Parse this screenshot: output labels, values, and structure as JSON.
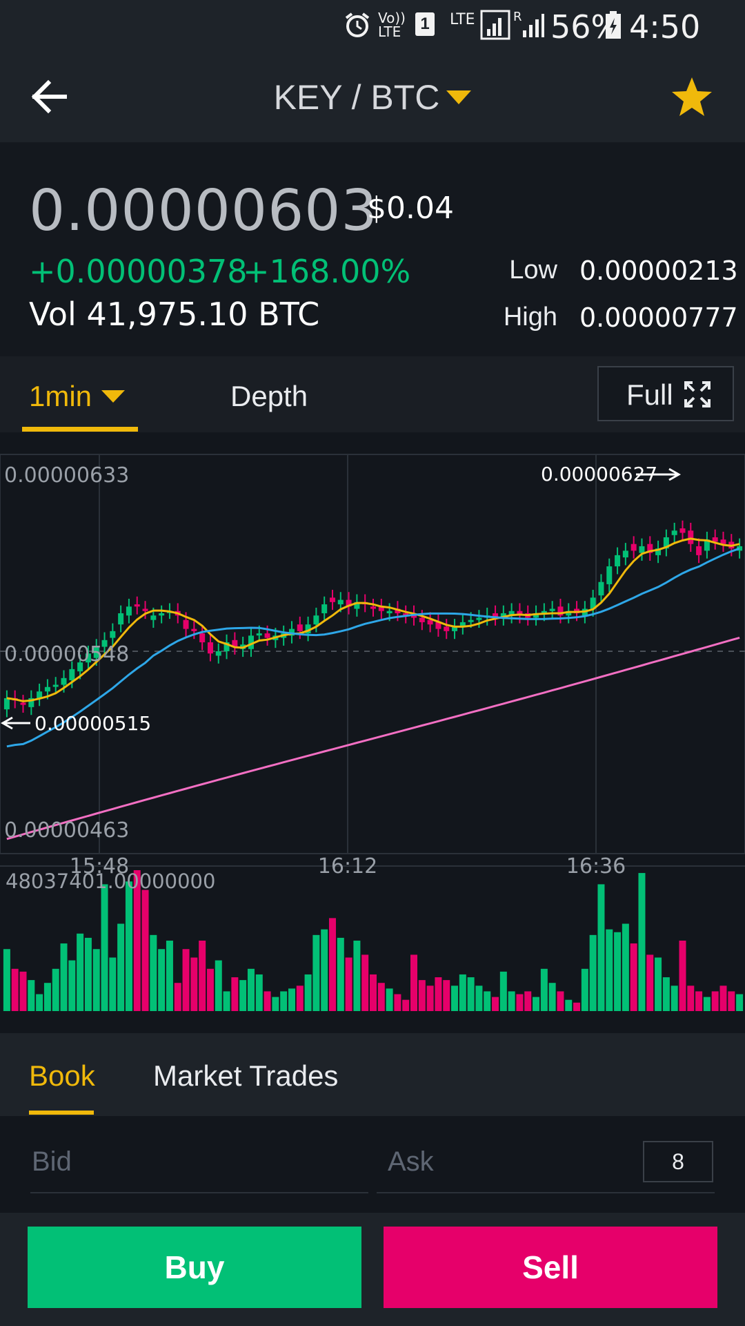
{
  "status_bar": {
    "network_labels": [
      "Vo)) LTE",
      "1",
      "LTE",
      "R"
    ],
    "battery": "56%",
    "time": "4:50 pm"
  },
  "header": {
    "pair": "KEY / BTC",
    "back_icon": "arrow-left-icon",
    "favorite_icon": "star-icon",
    "favorite_color": "#f0b90b"
  },
  "ticker": {
    "price": "0.00000603",
    "price_usd": "$0.04",
    "change": "+0.00000378",
    "change_pct": "+168.00%",
    "volume": "Vol 41,975.10 BTC",
    "low_label": "Low",
    "low_value": "0.00000213",
    "high_label": "High",
    "high_value": "0.00000777",
    "up_color": "#02c076"
  },
  "chart_toolbar": {
    "interval": "1min",
    "depth_label": "Depth",
    "full_label": "Full",
    "accent": "#f0b90b"
  },
  "chart_data": {
    "type": "candlestick",
    "y_axis_labels": [
      "0.00000633",
      "0.00000548",
      "0.00000463"
    ],
    "ylim": [
      4.63e-06,
      6.33e-06
    ],
    "current_price_line": 5.48e-06,
    "x_axis_labels": [
      "15:48",
      "16:12",
      "16:36"
    ],
    "annotations": {
      "max_label": "0.00000627",
      "min_label": "0.00000515"
    },
    "up_color": "#02c076",
    "down_color": "#e6006a",
    "ma_colors": [
      "#f0b90b",
      "#2ea7e8",
      "#f36fc3"
    ],
    "close": [
      5.27,
      5.26,
      5.24,
      5.27,
      5.3,
      5.32,
      5.33,
      5.36,
      5.4,
      5.43,
      5.47,
      5.5,
      5.53,
      5.57,
      5.65,
      5.68,
      5.68,
      5.66,
      5.64,
      5.65,
      5.66,
      5.64,
      5.58,
      5.57,
      5.52,
      5.47,
      5.48,
      5.52,
      5.5,
      5.51,
      5.55,
      5.56,
      5.54,
      5.55,
      5.56,
      5.58,
      5.57,
      5.6,
      5.64,
      5.69,
      5.7,
      5.71,
      5.68,
      5.7,
      5.69,
      5.67,
      5.66,
      5.66,
      5.65,
      5.64,
      5.63,
      5.61,
      5.6,
      5.58,
      5.57,
      5.59,
      5.61,
      5.62,
      5.63,
      5.64,
      5.63,
      5.65,
      5.66,
      5.64,
      5.63,
      5.65,
      5.66,
      5.67,
      5.64,
      5.66,
      5.65,
      5.67,
      5.72,
      5.79,
      5.86,
      5.91,
      5.93,
      5.93,
      5.95,
      5.92,
      5.94,
      5.99,
      6.02,
      6.01,
      5.96,
      5.91,
      5.98,
      5.97,
      5.96,
      5.94,
      5.95
    ],
    "open": [
      5.22,
      5.27,
      5.25,
      5.23,
      5.27,
      5.3,
      5.33,
      5.33,
      5.35,
      5.39,
      5.43,
      5.45,
      5.5,
      5.54,
      5.6,
      5.64,
      5.69,
      5.67,
      5.62,
      5.64,
      5.66,
      5.66,
      5.62,
      5.58,
      5.56,
      5.52,
      5.46,
      5.48,
      5.53,
      5.49,
      5.49,
      5.56,
      5.56,
      5.53,
      5.54,
      5.55,
      5.6,
      5.56,
      5.6,
      5.65,
      5.72,
      5.69,
      5.71,
      5.67,
      5.7,
      5.68,
      5.68,
      5.65,
      5.67,
      5.65,
      5.65,
      5.63,
      5.62,
      5.61,
      5.59,
      5.57,
      5.59,
      5.62,
      5.62,
      5.63,
      5.65,
      5.63,
      5.64,
      5.66,
      5.65,
      5.63,
      5.65,
      5.66,
      5.68,
      5.64,
      5.67,
      5.64,
      5.67,
      5.73,
      5.78,
      5.86,
      5.9,
      5.96,
      5.92,
      5.96,
      5.91,
      5.94,
      6.0,
      6.03,
      6.02,
      5.95,
      5.93,
      5.99,
      5.98,
      5.97,
      5.93
    ],
    "volume_axis_label": "48037401.00000000",
    "volume": [
      44,
      30,
      28,
      22,
      12,
      20,
      30,
      48,
      36,
      55,
      52,
      44,
      90,
      38,
      62,
      92,
      100,
      86,
      54,
      44,
      50,
      20,
      44,
      38,
      50,
      30,
      36,
      14,
      24,
      22,
      30,
      26,
      14,
      10,
      14,
      16,
      18,
      26,
      54,
      58,
      66,
      52,
      38,
      50,
      40,
      26,
      20,
      16,
      12,
      8,
      40,
      22,
      18,
      24,
      22,
      18,
      26,
      24,
      18,
      14,
      10,
      28,
      14,
      12,
      14,
      10,
      30,
      20,
      14,
      8,
      6,
      30,
      54,
      90,
      58,
      56,
      62,
      48,
      98,
      40,
      38,
      24,
      18,
      50,
      18,
      14,
      10,
      14,
      18,
      14,
      12
    ]
  },
  "book": {
    "tabs": [
      "Book",
      "Market Trades"
    ],
    "bid_label": "Bid",
    "ask_label": "Ask",
    "precision": "8"
  },
  "actions": {
    "buy_label": "Buy",
    "sell_label": "Sell",
    "buy_color": "#02c076",
    "sell_color": "#e6006a"
  }
}
